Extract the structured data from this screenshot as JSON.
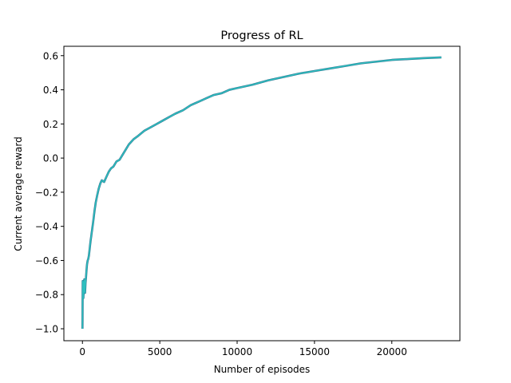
{
  "chart_data": {
    "type": "line",
    "title": "Progress of RL",
    "xlabel": "Number of episodes",
    "ylabel": "Current average reward",
    "xlim": [
      -1200,
      24400
    ],
    "ylim": [
      -1.07,
      0.655
    ],
    "xticks": [
      0,
      5000,
      10000,
      15000,
      20000
    ],
    "xtick_labels": [
      "0",
      "5000",
      "10000",
      "15000",
      "20000"
    ],
    "yticks": [
      -1.0,
      -0.8,
      -0.6,
      -0.4,
      -0.2,
      0.0,
      0.2,
      0.4,
      0.6
    ],
    "ytick_labels": [
      "−1.0",
      "−0.8",
      "−0.6",
      "−0.4",
      "−0.2",
      "0.0",
      "0.2",
      "0.4",
      "0.6"
    ],
    "grid": false,
    "series": [
      {
        "color": "#2ebfbf",
        "outline_color": "#2a6b8a",
        "x": [
          0,
          5,
          10,
          20,
          40,
          60,
          80,
          100,
          120,
          140,
          170,
          200,
          230,
          260,
          300,
          340,
          380,
          420,
          470,
          520,
          580,
          640,
          700,
          780,
          860,
          950,
          1050,
          1150,
          1250,
          1400,
          1550,
          1700,
          1850,
          2000,
          2200,
          2400,
          2600,
          2800,
          3000,
          3300,
          3600,
          4000,
          4400,
          4800,
          5200,
          5600,
          6000,
          6500,
          7000,
          7500,
          8000,
          8500,
          9000,
          9500,
          10000,
          11000,
          12000,
          13000,
          14000,
          15000,
          16000,
          17000,
          18000,
          19000,
          20000,
          21000,
          22000,
          23200
        ],
        "y": [
          -1.0,
          -0.95,
          -0.85,
          -0.72,
          -0.75,
          -0.82,
          -0.78,
          -0.74,
          -0.71,
          -0.76,
          -0.79,
          -0.73,
          -0.7,
          -0.66,
          -0.62,
          -0.6,
          -0.59,
          -0.57,
          -0.53,
          -0.49,
          -0.45,
          -0.41,
          -0.37,
          -0.31,
          -0.26,
          -0.22,
          -0.18,
          -0.15,
          -0.13,
          -0.14,
          -0.11,
          -0.08,
          -0.06,
          -0.05,
          -0.02,
          -0.01,
          0.02,
          0.05,
          0.08,
          0.11,
          0.13,
          0.16,
          0.18,
          0.2,
          0.22,
          0.24,
          0.26,
          0.28,
          0.31,
          0.33,
          0.35,
          0.37,
          0.38,
          0.4,
          0.41,
          0.43,
          0.455,
          0.475,
          0.495,
          0.51,
          0.525,
          0.54,
          0.555,
          0.565,
          0.575,
          0.58,
          0.585,
          0.59
        ]
      }
    ]
  }
}
